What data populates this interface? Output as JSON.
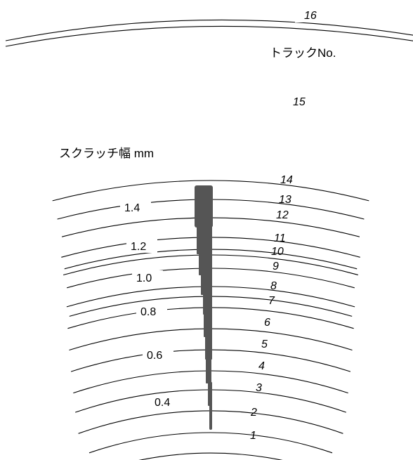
{
  "tracks": [
    "1",
    "2",
    "3",
    "4",
    "5",
    "6",
    "7",
    "8",
    "9",
    "10",
    "11",
    "12",
    "13",
    "14"
  ],
  "outer_track": "16",
  "middle_track": "15",
  "track_label": "トラックNo.",
  "scale_label": "スクラッチ幅 mm",
  "scale_ticks": [
    "0.4",
    "0.6",
    "0.8",
    "1.0",
    "1.2",
    "1.4"
  ],
  "colors": {
    "line": "#000000",
    "bar": "#555555",
    "background": "#ffffff"
  }
}
